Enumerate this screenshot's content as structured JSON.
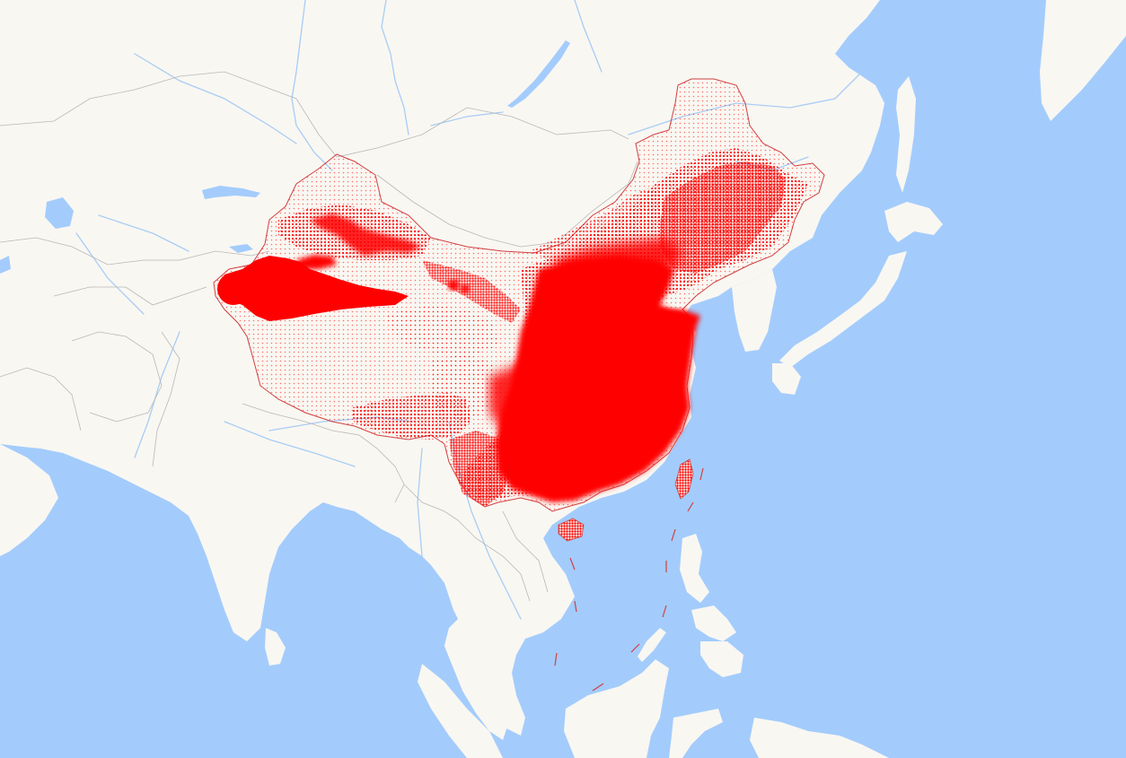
{
  "map": {
    "colors": {
      "ocean": "#a3ccfc",
      "land": "#f9f7f2",
      "border": "#b8b8b8",
      "river": "#a8cdf5",
      "lake": "#a3ccfc",
      "density": "#ff0000",
      "highlight_border": "#d04040"
    },
    "layers": [
      "ocean",
      "land",
      "lakes",
      "rivers",
      "country-borders",
      "density-overlay",
      "highlighted-region-border",
      "maritime-dashes"
    ],
    "highlighted_region": "China"
  }
}
